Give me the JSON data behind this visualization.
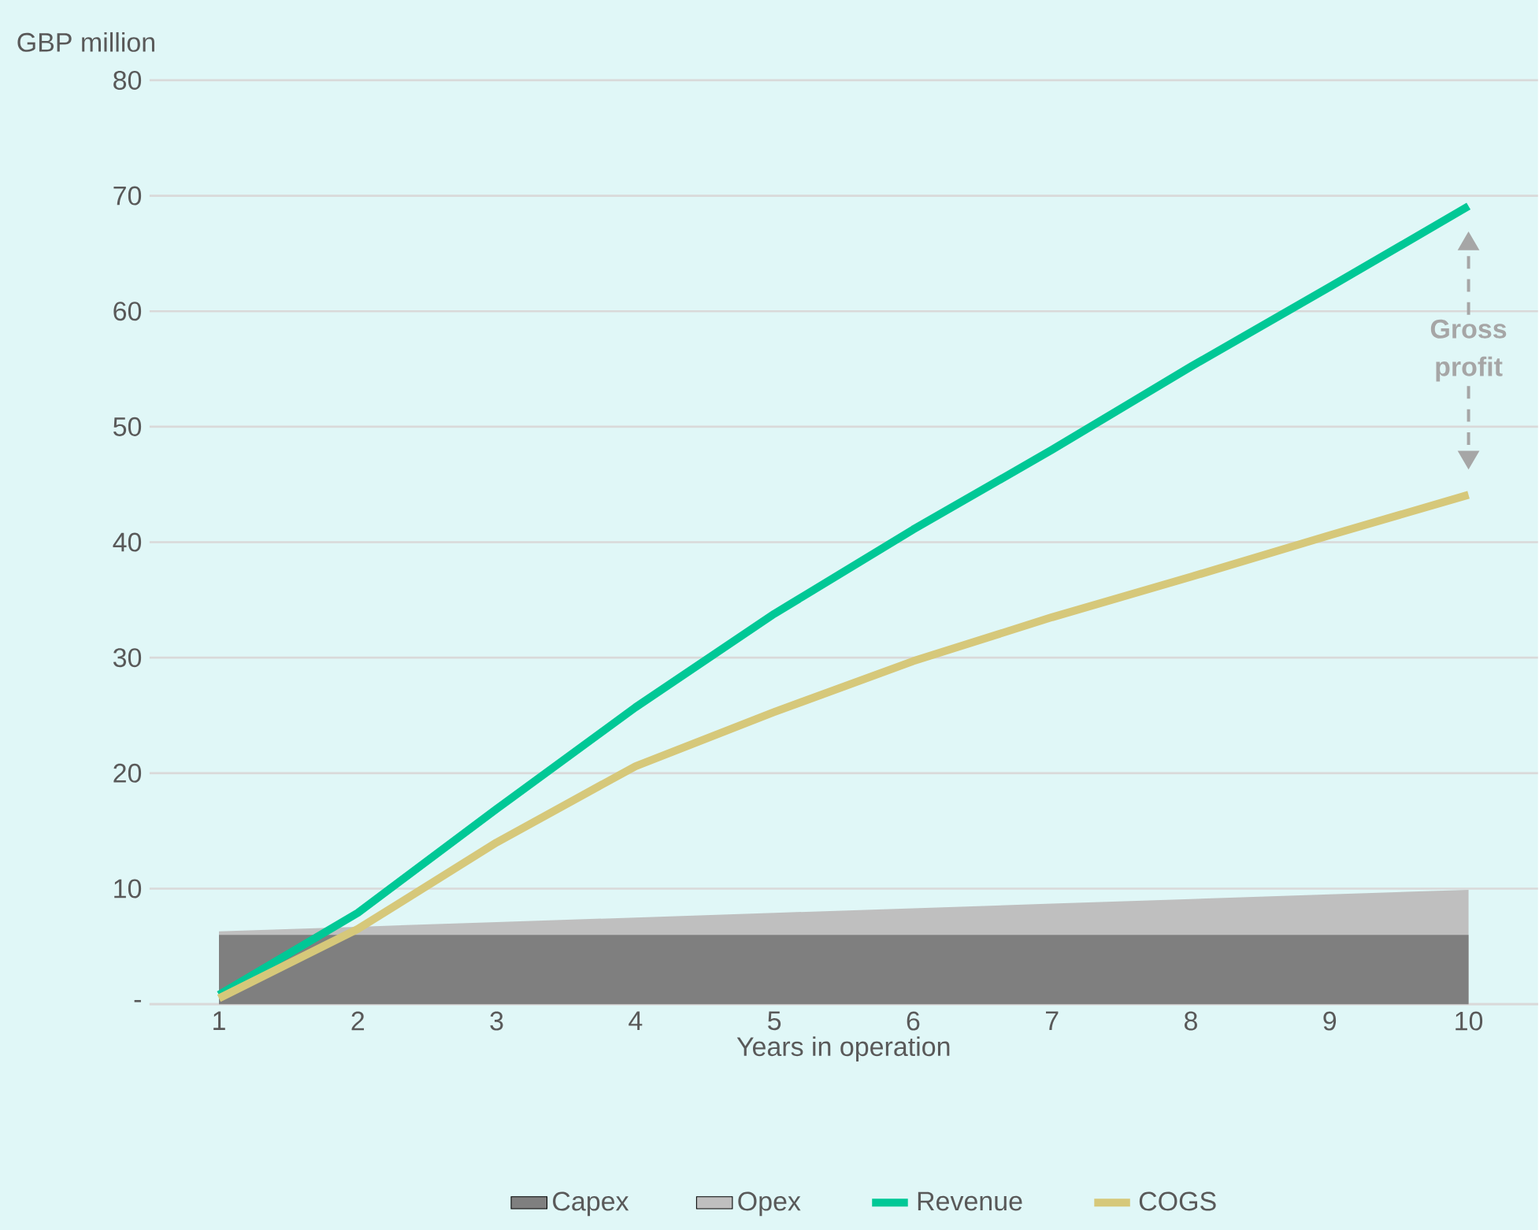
{
  "chart_data": {
    "type": "line",
    "ylabel": "GBP million",
    "xlabel": "Years in operation",
    "x": [
      1,
      2,
      3,
      4,
      5,
      6,
      7,
      8,
      9,
      10
    ],
    "series": [
      {
        "name": "Capex",
        "type": "area",
        "color": "#7f7f7f",
        "values": [
          6.0,
          6.0,
          6.0,
          6.0,
          6.0,
          6.0,
          6.0,
          6.0,
          6.0,
          6.0
        ]
      },
      {
        "name": "Opex",
        "type": "area",
        "color": "#bfbfbf",
        "values": [
          0.3,
          0.7,
          1.1,
          1.5,
          1.9,
          2.3,
          2.7,
          3.1,
          3.5,
          3.9
        ]
      },
      {
        "name": "Revenue",
        "color": "#00c896",
        "values": [
          0.8,
          7.9,
          16.9,
          25.7,
          33.8,
          41.1,
          48.0,
          55.2,
          62.1,
          69.1
        ]
      },
      {
        "name": "COGS",
        "color": "#d6c87a",
        "values": [
          0.5,
          6.5,
          14.0,
          20.6,
          25.3,
          29.7,
          33.5,
          37.0,
          40.6,
          44.1
        ]
      }
    ],
    "stacked": true,
    "xlim": [
      0.5,
      10.5
    ],
    "xticks": [
      1,
      2,
      3,
      4,
      5,
      6,
      7,
      8,
      9,
      10
    ],
    "ylim": [
      0,
      80
    ],
    "yticks": [
      {
        "value": 0,
        "label": "-"
      },
      10,
      20,
      30,
      40,
      50,
      60,
      70,
      80
    ],
    "grid": "y",
    "legend": "bottom",
    "marker": "none",
    "line_style": "solid",
    "annotations": [
      "Gross profit"
    ]
  }
}
